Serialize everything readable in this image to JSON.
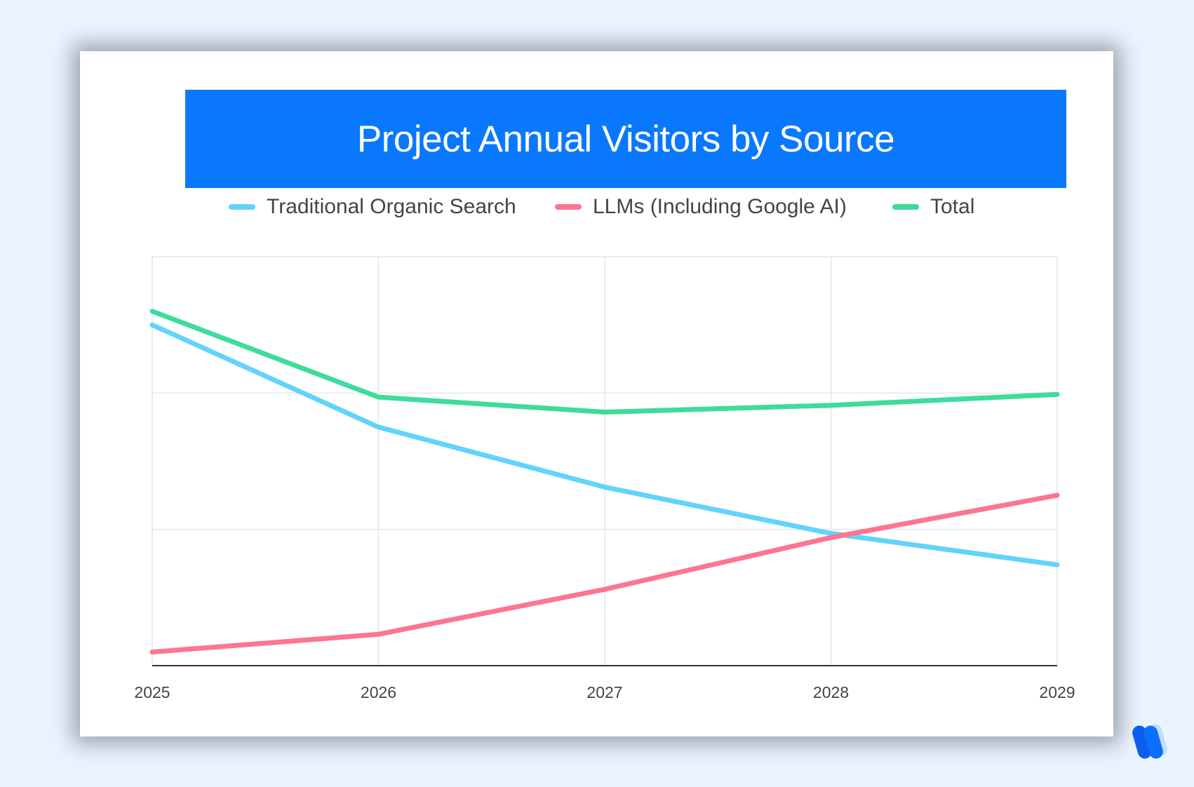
{
  "chart_data": {
    "type": "line",
    "title": "Project Annual Visitors by Source",
    "xlabel": "",
    "ylabel": "",
    "categories": [
      "2025",
      "2026",
      "2027",
      "2028",
      "2029"
    ],
    "ylim": [
      0,
      3
    ],
    "y_tick_labels_shown": false,
    "grid": true,
    "legend": "top",
    "series": [
      {
        "name": "Traditional Organic Search",
        "color": "#62d3fb",
        "values": [
          2.5,
          1.75,
          1.31,
          0.97,
          0.74
        ]
      },
      {
        "name": "LLMs (Including Google AI)",
        "color": "#fd7590",
        "values": [
          0.1,
          0.23,
          0.56,
          0.94,
          1.25
        ]
      },
      {
        "name": "Total",
        "color": "#3ddc9c",
        "values": [
          2.6,
          1.97,
          1.86,
          1.91,
          1.99
        ]
      }
    ]
  },
  "colors": {
    "background": "#eaf4fe",
    "title_bar": "#0a78fc"
  },
  "logo_icon": "brand-w-logo"
}
